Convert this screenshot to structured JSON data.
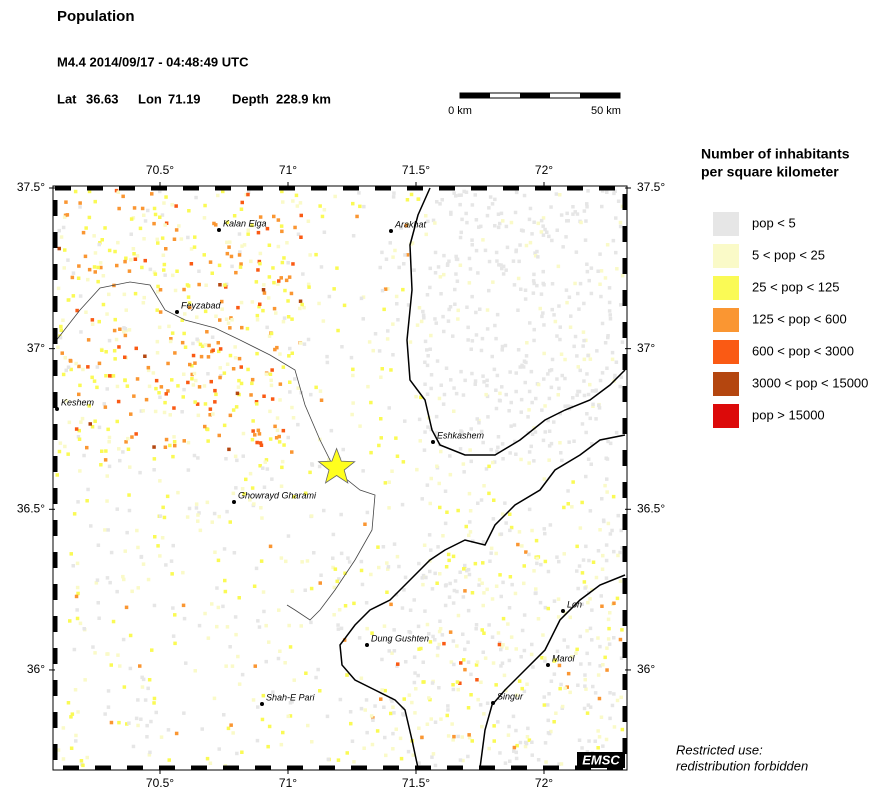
{
  "header": {
    "title": "Population",
    "event": "M4.4  2014/09/17 - 04:48:49 UTC",
    "lat_label": "Lat",
    "lat": 36.63,
    "lon_label": "Lon",
    "lon": 71.19,
    "depth_label": "Depth",
    "depth": "228.9 km"
  },
  "scale_bar": {
    "start": "0 km",
    "end": "50 km"
  },
  "map": {
    "xticks": [
      {
        "value": 70.5,
        "label": "70.5°"
      },
      {
        "value": 71,
        "label": "71°"
      },
      {
        "value": 71.5,
        "label": "71.5°"
      },
      {
        "value": 72,
        "label": "72°"
      }
    ],
    "yticks": [
      {
        "value": 37.5,
        "label": "37.5°"
      },
      {
        "value": 37,
        "label": "37°"
      },
      {
        "value": 36.5,
        "label": "36.5°"
      },
      {
        "value": 36,
        "label": "36°"
      }
    ],
    "places": [
      "Kalan Elga",
      "Arakhat",
      "Feyzabad",
      "Keshem",
      "Eshkashem",
      "Ghowrayd Gharami",
      "Lon",
      "Dung Gushten",
      "Marol",
      "Singur",
      "Shah-E Pari"
    ],
    "logo": "EMSC"
  },
  "legend": {
    "title": [
      "Number of inhabitants",
      "per square kilometer"
    ],
    "items": [
      {
        "label": "pop < 5",
        "color": "#e6e6e6"
      },
      {
        "label": "5 < pop < 25",
        "color": "#fafac8"
      },
      {
        "label": "25 < pop < 125",
        "color": "#fafa55"
      },
      {
        "label": "125 < pop < 600",
        "color": "#fa9632"
      },
      {
        "label": "600 < pop < 3000",
        "color": "#fa5a14"
      },
      {
        "label": "3000 < pop < 15000",
        "color": "#b4460f"
      },
      {
        "label": "pop > 15000",
        "color": "#dc0a0a"
      }
    ]
  },
  "notice": [
    "Restricted use:",
    "redistribution forbidden"
  ]
}
